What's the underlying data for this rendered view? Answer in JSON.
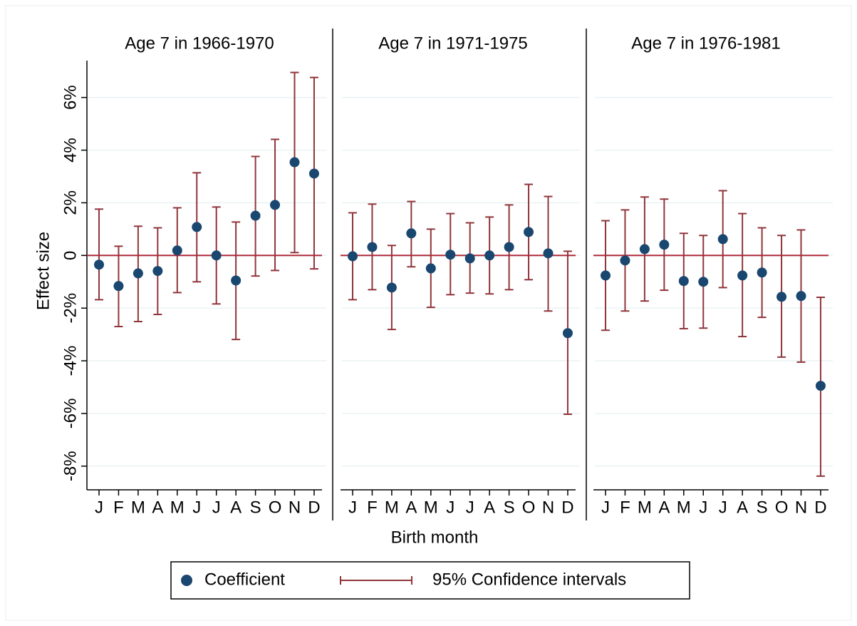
{
  "chart_data": [
    {
      "type": "errorbar",
      "title": "Age 7 in 1966-1970",
      "categories": [
        "J",
        "F",
        "M",
        "A",
        "M",
        "J",
        "J",
        "A",
        "S",
        "O",
        "N",
        "D"
      ],
      "values": [
        -0.35,
        -1.16,
        -0.68,
        -0.59,
        0.19,
        1.08,
        0,
        -0.95,
        1.51,
        1.92,
        3.54,
        3.11
      ],
      "ci_low": [
        -1.68,
        -2.7,
        -2.51,
        -2.24,
        -1.41,
        -1.0,
        -1.84,
        -3.19,
        -0.78,
        -0.57,
        0.11,
        -0.51
      ],
      "ci_high": [
        1.76,
        0.35,
        1.11,
        1.05,
        1.81,
        3.14,
        1.84,
        1.27,
        3.76,
        4.41,
        6.95,
        6.76
      ]
    },
    {
      "type": "errorbar",
      "title": "Age 7 in 1971-1975",
      "categories": [
        "J",
        "F",
        "M",
        "A",
        "M",
        "J",
        "J",
        "A",
        "S",
        "O",
        "N",
        "D"
      ],
      "values": [
        -0.03,
        0.32,
        -1.22,
        0.84,
        -0.49,
        0.03,
        -0.11,
        0,
        0.32,
        0.89,
        0.08,
        -2.95
      ],
      "ci_low": [
        -1.68,
        -1.3,
        -2.81,
        -0.43,
        -1.97,
        -1.49,
        -1.43,
        -1.46,
        -1.3,
        -0.92,
        -2.11,
        -6.03
      ],
      "ci_high": [
        1.62,
        1.95,
        0.38,
        2.05,
        1.0,
        1.59,
        1.24,
        1.46,
        1.92,
        2.7,
        2.24,
        0.16
      ]
    },
    {
      "type": "errorbar",
      "title": "Age 7 in 1976-1981",
      "categories": [
        "J",
        "F",
        "M",
        "A",
        "M",
        "J",
        "J",
        "A",
        "S",
        "O",
        "N",
        "D"
      ],
      "values": [
        -0.76,
        -0.19,
        0.24,
        0.41,
        -0.97,
        -1.0,
        0.62,
        -0.76,
        -0.65,
        -1.57,
        -1.54,
        -4.95
      ],
      "ci_low": [
        -2.84,
        -2.11,
        -1.73,
        -1.32,
        -2.78,
        -2.76,
        -1.22,
        -3.08,
        -2.35,
        -3.86,
        -4.05,
        -8.38
      ],
      "ci_high": [
        1.32,
        1.73,
        2.22,
        2.14,
        0.84,
        0.76,
        2.46,
        1.59,
        1.05,
        0.76,
        0.97,
        -1.59
      ]
    }
  ],
  "y_axis": {
    "label": "Effect size",
    "ylim": [
      -8.9,
      7.4
    ],
    "yticks": [
      {
        "value": -8,
        "label": "-8%"
      },
      {
        "value": -6,
        "label": "-6%"
      },
      {
        "value": -4,
        "label": "-4%"
      },
      {
        "value": -2,
        "label": "-2%"
      },
      0,
      {
        "value": 2,
        "label": "2%"
      },
      {
        "value": 4,
        "label": "4%"
      },
      {
        "value": 6,
        "label": "6%"
      }
    ],
    "grid": true
  },
  "x_label": "Birth month",
  "legend": [
    {
      "name": "Coefficient",
      "color": "#1a476f"
    },
    {
      "name": "95% Confidence intervals",
      "color": "#90353b"
    }
  ]
}
